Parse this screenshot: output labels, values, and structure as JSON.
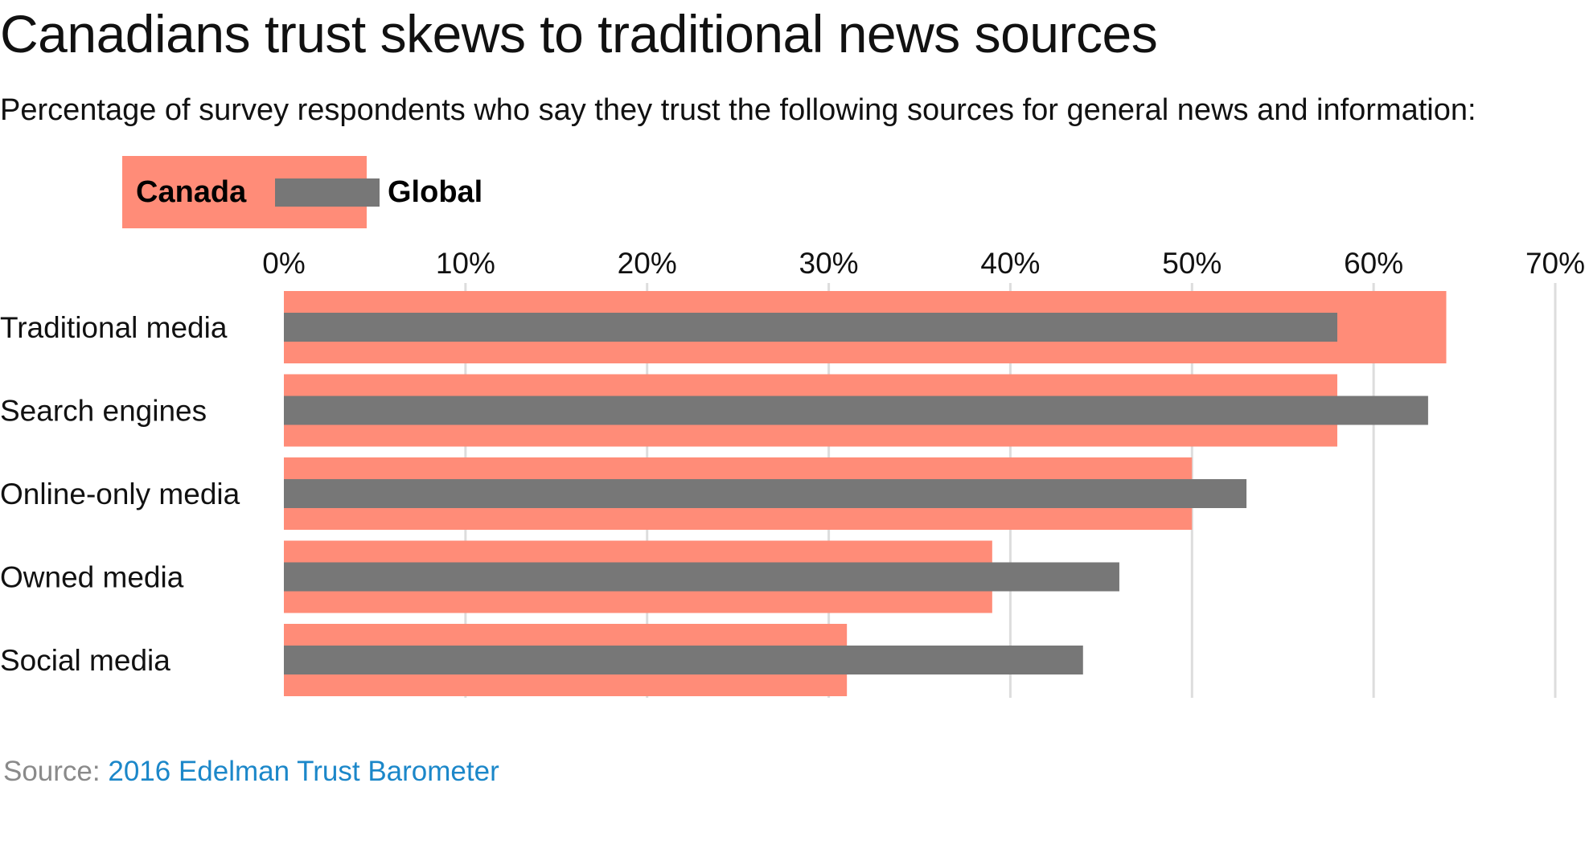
{
  "title": "Canadians trust skews to traditional news sources",
  "subtitle": "Percentage of survey respondents who say they trust the following sources for general news and information:",
  "legend": {
    "canada_label": "Canada",
    "global_label": "Global"
  },
  "source": {
    "prefix": "Source:",
    "link_text": "2016 Edelman Trust Barometer"
  },
  "colors": {
    "canada": "#ff8c78",
    "global": "#777777",
    "grid": "#dddddd",
    "text": "#111111"
  },
  "chart_data": {
    "type": "bar",
    "orientation": "horizontal",
    "categories": [
      "Traditional media",
      "Search engines",
      "Online-only media",
      "Owned media",
      "Social media"
    ],
    "series": [
      {
        "name": "Canada",
        "values": [
          64,
          58,
          50,
          39,
          31
        ]
      },
      {
        "name": "Global",
        "values": [
          58,
          63,
          53,
          46,
          44
        ]
      }
    ],
    "xlim": [
      0,
      70
    ],
    "xticks": [
      0,
      10,
      20,
      30,
      40,
      50,
      60,
      70
    ],
    "tick_labels": [
      "0%",
      "10%",
      "20%",
      "30%",
      "40%",
      "50%",
      "60%",
      "70%"
    ],
    "x_axis_position": "top",
    "grid": true,
    "legend_position": "top-left"
  }
}
